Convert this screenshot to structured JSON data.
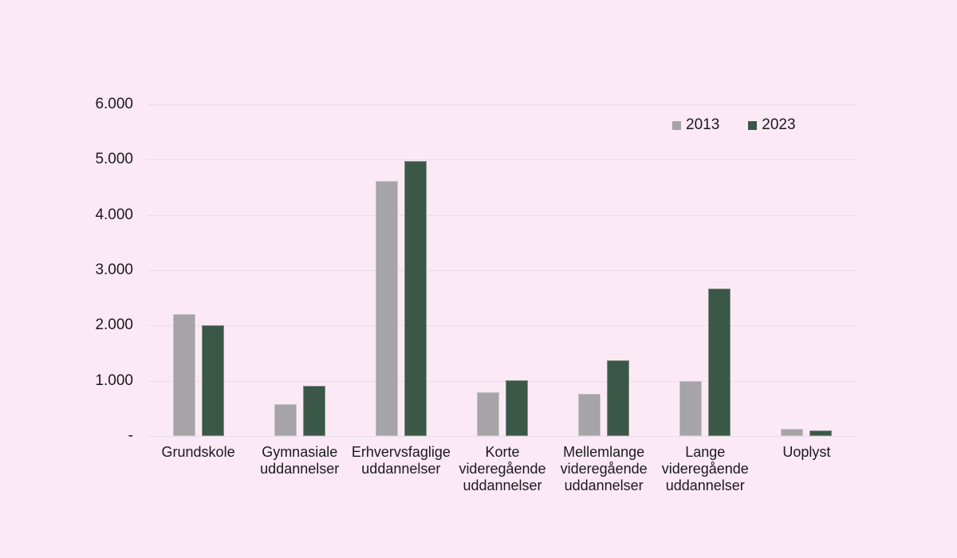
{
  "chart_data": {
    "type": "bar",
    "title": "",
    "xlabel": "",
    "ylabel": "",
    "categories": [
      "Grundskole",
      "Gymnasiale uddannelser",
      "Erhvervsfaglige uddannelser",
      "Korte videregående uddannelser",
      "Mellemlange videregående uddannelser",
      "Lange videregående uddannelser",
      "Uoplyst"
    ],
    "series": [
      {
        "name": "2013",
        "color": "#a6a4a6",
        "values": [
          2210,
          570,
          4620,
          800,
          770,
          990,
          130
        ]
      },
      {
        "name": "2023",
        "color": "#3a5747",
        "values": [
          2010,
          910,
          4980,
          1010,
          1370,
          2670,
          100
        ]
      }
    ],
    "ylim": [
      0,
      6000
    ],
    "ytick_interval": 1000,
    "ytick_labels_bottom_to_top": [
      "-",
      "1.000",
      "2.000",
      "3.000",
      "4.000",
      "5.000",
      "6.000"
    ],
    "grid": true,
    "legend_position": "top-right"
  },
  "colors": {
    "background": "#fce9f6",
    "gridline": "#e6dce9",
    "text": "#1a1a1a"
  }
}
